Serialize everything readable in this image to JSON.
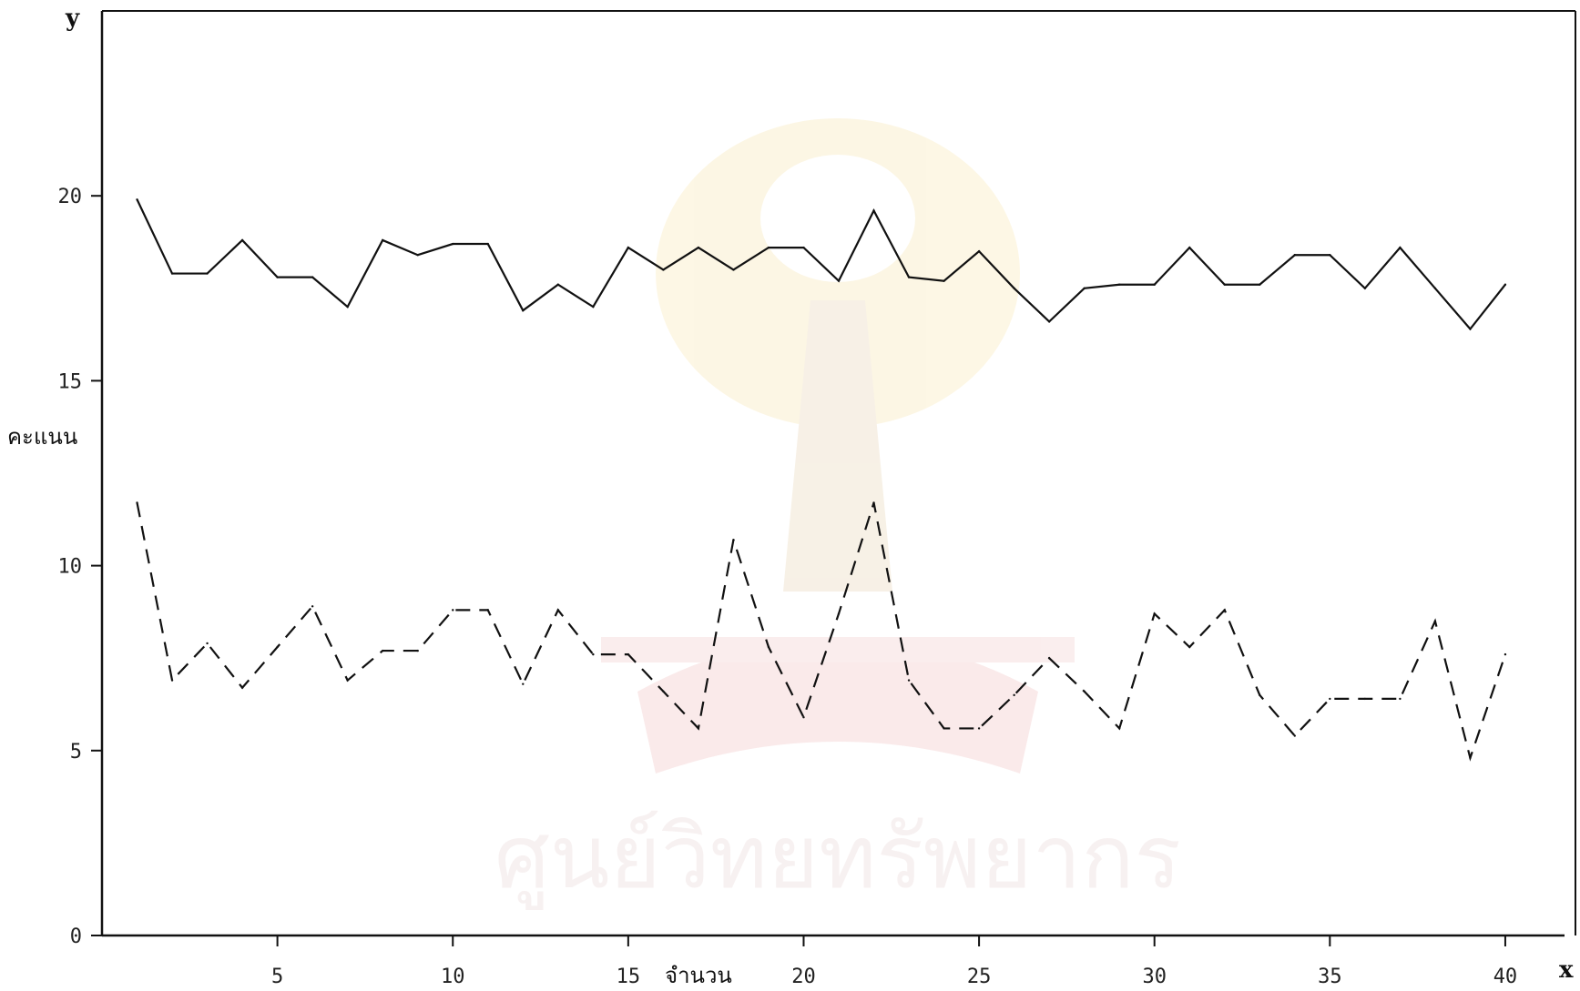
{
  "chart_data": {
    "type": "line",
    "xlabel": "จำนวน",
    "ylabel": "คะแนน",
    "x_axis_letter": "x",
    "y_axis_letter": "y",
    "xlim": [
      0,
      42
    ],
    "ylim": [
      0,
      25
    ],
    "x_ticks": [
      5,
      10,
      15,
      20,
      25,
      30,
      35,
      40
    ],
    "y_ticks": [
      0,
      5,
      10,
      15,
      20
    ],
    "grid": false,
    "x": [
      1,
      2,
      3,
      4,
      5,
      6,
      7,
      8,
      9,
      10,
      11,
      12,
      13,
      14,
      15,
      16,
      17,
      18,
      19,
      20,
      21,
      22,
      23,
      24,
      25,
      26,
      27,
      28,
      29,
      30,
      31,
      32,
      33,
      34,
      35,
      36,
      37,
      38,
      39,
      40
    ],
    "series": [
      {
        "style": "solid",
        "values": [
          19.9,
          17.9,
          17.9,
          18.8,
          17.8,
          17.8,
          17.0,
          18.8,
          18.4,
          18.7,
          18.7,
          16.9,
          17.6,
          17.0,
          18.6,
          18.0,
          18.6,
          18.0,
          18.6,
          18.6,
          17.7,
          19.6,
          17.8,
          17.7,
          18.5,
          17.5,
          16.6,
          17.5,
          17.6,
          17.6,
          18.6,
          17.6,
          17.6,
          18.4,
          18.4,
          17.5,
          18.6,
          17.5,
          16.4,
          17.6
        ]
      },
      {
        "style": "dashed",
        "values": [
          11.7,
          6.9,
          7.9,
          6.7,
          7.8,
          8.9,
          6.9,
          7.7,
          7.7,
          8.8,
          8.8,
          6.8,
          8.8,
          7.6,
          7.6,
          6.6,
          5.6,
          10.7,
          7.8,
          5.9,
          8.7,
          11.7,
          6.9,
          5.6,
          5.6,
          6.5,
          7.5,
          6.6,
          5.6,
          8.7,
          7.8,
          8.8,
          6.5,
          5.4,
          6.4,
          6.4,
          6.4,
          8.5,
          4.8,
          7.6
        ]
      }
    ]
  },
  "colors": {
    "line": "#111111",
    "background": "#ffffff"
  },
  "watermark": {
    "text": "ศูนย์วิทยทรัพยากร",
    "emblem": "university-seal"
  }
}
